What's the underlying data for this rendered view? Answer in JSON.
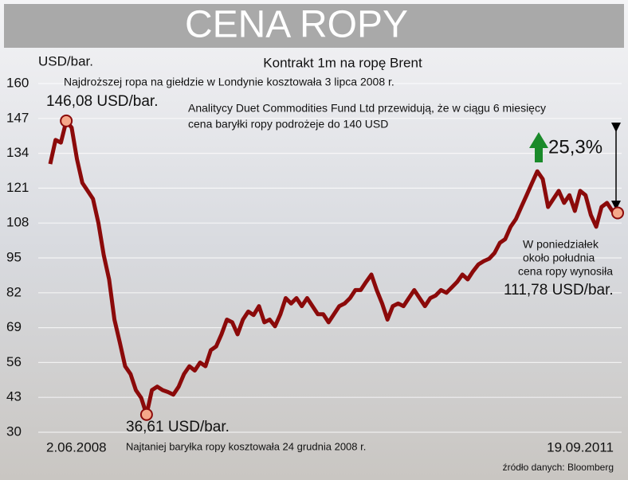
{
  "chart_data": {
    "type": "line",
    "title": "CENA ROPY",
    "subtitle": "Kontrakt 1m na ropę Brent",
    "y_label": "USD/bar.",
    "source": "źródło danych: Bloomberg",
    "annotations": {
      "peak_note": "Najdroższej ropa na giełdzie w Londynie kosztowała 3 lipca 2008 r.",
      "peak_label": "146,08 USD/bar.",
      "forecast": [
        "Analitycy Duet Commodities Fund Ltd przewidują, że w ciągu 6 miesięcy",
        "cena baryłki ropy podrożeje do 140 USD"
      ],
      "change": "25,3%",
      "last_note": [
        "W poniedziałek",
        "około południa",
        "cena ropy wynosiła"
      ],
      "last_label": "111,78 USD/bar.",
      "low_label": "36,61 USD/bar.",
      "low_note": "Najtaniej baryłka ropy kosztowała 24 grudnia 2008 r."
    },
    "categories": [
      "2.06.2008",
      null,
      null,
      null,
      null,
      null,
      null,
      null,
      null,
      null,
      null,
      null,
      null,
      null,
      null,
      null,
      null,
      null,
      null,
      null,
      null,
      null,
      null,
      null,
      null,
      null,
      null,
      null,
      null,
      null,
      null,
      null,
      null,
      null,
      null,
      null,
      null,
      null,
      null,
      null,
      null,
      null,
      null,
      null,
      null,
      null,
      null,
      null,
      null,
      null,
      null,
      null,
      null,
      null,
      null,
      null,
      null,
      null,
      null,
      null,
      null,
      null,
      null,
      null,
      null,
      null,
      null,
      null,
      null,
      null,
      null,
      null,
      null,
      null,
      null,
      null,
      null,
      null,
      null,
      null,
      null,
      null,
      null,
      null,
      null,
      null,
      null,
      null,
      null,
      null,
      null,
      null,
      null,
      null,
      null,
      null,
      null,
      null,
      null,
      null,
      null,
      null,
      null,
      null,
      null,
      null,
      "19.09.2011"
    ],
    "values": [
      130,
      139,
      138,
      146.08,
      143.6,
      131.8,
      123,
      120,
      117,
      108,
      96,
      87,
      72,
      63.5,
      54.6,
      51.7,
      45.7,
      42.8,
      36.61,
      45.7,
      47,
      45.7,
      45,
      44,
      47,
      51.7,
      54.6,
      53,
      56,
      54.6,
      60.6,
      62,
      66.5,
      72,
      71,
      66.5,
      72,
      75,
      73.7,
      77,
      71,
      72,
      69.5,
      74,
      80,
      78,
      80,
      77,
      80,
      77,
      74,
      74,
      71,
      74,
      77,
      78,
      80,
      83,
      83,
      86,
      88.8,
      83,
      78,
      72,
      77,
      78,
      77,
      80,
      83,
      80,
      77,
      80,
      81,
      83,
      82,
      84,
      86,
      88.8,
      87,
      90,
      92.6,
      93.8,
      94.7,
      96.8,
      100.6,
      102,
      106.6,
      109.5,
      114,
      118.4,
      122.9,
      127.3,
      124.4,
      114,
      117,
      120,
      115.5,
      118.4,
      112.5,
      120,
      118.4,
      111,
      106.6,
      114,
      115.5,
      112.5,
      111.78
    ],
    "color": "#8b0a0a",
    "ylim": [
      30,
      160
    ],
    "yticks": [
      30,
      43,
      56,
      69,
      82,
      95,
      108,
      121,
      134,
      147,
      160
    ],
    "grid": true
  }
}
